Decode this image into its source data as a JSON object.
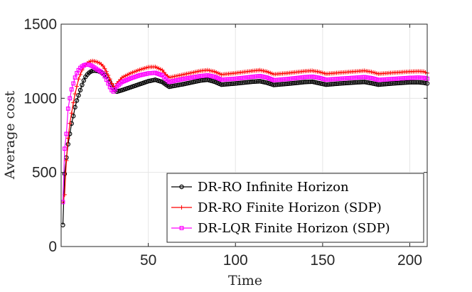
{
  "chart_data": {
    "type": "line",
    "title": "",
    "xlabel": "Time",
    "ylabel": "Average cost",
    "xlim": [
      0,
      210
    ],
    "ylim": [
      0,
      1500
    ],
    "xticks": [
      50,
      100,
      150,
      200
    ],
    "yticks": [
      0,
      500,
      1000,
      1500
    ],
    "grid": true,
    "legend_position": "bottom-right",
    "series": [
      {
        "name": "DR-RO Infinite Horizon",
        "color": "#000000",
        "marker": "circle",
        "keypoints": [
          [
            1,
            145
          ],
          [
            2,
            490
          ],
          [
            3,
            600
          ],
          [
            4,
            690
          ],
          [
            5,
            760
          ],
          [
            6,
            830
          ],
          [
            7,
            880
          ],
          [
            8,
            940
          ],
          [
            9,
            985
          ],
          [
            10,
            1020
          ],
          [
            11,
            1055
          ],
          [
            12,
            1090
          ],
          [
            13,
            1120
          ],
          [
            14,
            1145
          ],
          [
            15,
            1160
          ],
          [
            16,
            1172
          ],
          [
            17,
            1180
          ],
          [
            18,
            1185
          ],
          [
            19,
            1187
          ],
          [
            20,
            1186
          ],
          [
            21,
            1184
          ],
          [
            22,
            1180
          ],
          [
            23,
            1175
          ],
          [
            24,
            1168
          ],
          [
            25,
            1158
          ],
          [
            26,
            1146
          ],
          [
            27,
            1130
          ],
          [
            28,
            1110
          ],
          [
            29,
            1090
          ],
          [
            30,
            1070
          ],
          [
            31,
            1055
          ],
          [
            32,
            1045
          ],
          [
            35,
            1055
          ],
          [
            40,
            1075
          ],
          [
            45,
            1095
          ],
          [
            50,
            1115
          ],
          [
            54,
            1125
          ],
          [
            58,
            1110
          ],
          [
            61,
            1085
          ],
          [
            62,
            1078
          ],
          [
            70,
            1095
          ],
          [
            80,
            1120
          ],
          [
            84,
            1125
          ],
          [
            88,
            1112
          ],
          [
            92,
            1092
          ],
          [
            100,
            1100
          ],
          [
            110,
            1112
          ],
          [
            114,
            1115
          ],
          [
            118,
            1105
          ],
          [
            122,
            1090
          ],
          [
            130,
            1098
          ],
          [
            140,
            1110
          ],
          [
            144,
            1112
          ],
          [
            148,
            1102
          ],
          [
            152,
            1092
          ],
          [
            160,
            1100
          ],
          [
            170,
            1108
          ],
          [
            174,
            1110
          ],
          [
            178,
            1102
          ],
          [
            182,
            1092
          ],
          [
            190,
            1100
          ],
          [
            200,
            1108
          ],
          [
            205,
            1108
          ],
          [
            208,
            1105
          ],
          [
            210,
            1100
          ]
        ]
      },
      {
        "name": "DR-RO Finite Horizon (SDP)",
        "color": "#ff0000",
        "marker": "plus",
        "keypoints": [
          [
            1,
            300
          ],
          [
            2,
            350
          ],
          [
            3,
            580
          ],
          [
            4,
            730
          ],
          [
            5,
            830
          ],
          [
            6,
            900
          ],
          [
            7,
            970
          ],
          [
            8,
            1030
          ],
          [
            9,
            1080
          ],
          [
            10,
            1130
          ],
          [
            11,
            1160
          ],
          [
            12,
            1190
          ],
          [
            13,
            1210
          ],
          [
            14,
            1225
          ],
          [
            15,
            1237
          ],
          [
            16,
            1245
          ],
          [
            17,
            1250
          ],
          [
            18,
            1252
          ],
          [
            19,
            1250
          ],
          [
            20,
            1247
          ],
          [
            21,
            1243
          ],
          [
            22,
            1238
          ],
          [
            23,
            1230
          ],
          [
            24,
            1218
          ],
          [
            25,
            1200
          ],
          [
            26,
            1180
          ],
          [
            27,
            1155
          ],
          [
            28,
            1130
          ],
          [
            29,
            1100
          ],
          [
            30,
            1080
          ],
          [
            31,
            1075
          ],
          [
            32,
            1100
          ],
          [
            35,
            1140
          ],
          [
            40,
            1170
          ],
          [
            45,
            1192
          ],
          [
            50,
            1210
          ],
          [
            54,
            1212
          ],
          [
            58,
            1190
          ],
          [
            60,
            1160
          ],
          [
            62,
            1140
          ],
          [
            70,
            1160
          ],
          [
            80,
            1185
          ],
          [
            84,
            1190
          ],
          [
            88,
            1180
          ],
          [
            92,
            1160
          ],
          [
            100,
            1170
          ],
          [
            110,
            1185
          ],
          [
            114,
            1190
          ],
          [
            118,
            1180
          ],
          [
            122,
            1162
          ],
          [
            130,
            1170
          ],
          [
            140,
            1183
          ],
          [
            144,
            1186
          ],
          [
            148,
            1178
          ],
          [
            152,
            1165
          ],
          [
            160,
            1173
          ],
          [
            170,
            1182
          ],
          [
            174,
            1186
          ],
          [
            178,
            1178
          ],
          [
            182,
            1165
          ],
          [
            190,
            1172
          ],
          [
            200,
            1180
          ],
          [
            205,
            1182
          ],
          [
            208,
            1180
          ],
          [
            210,
            1170
          ]
        ]
      },
      {
        "name": "DR-LQR Finite Horizon (SDP)",
        "color": "#ff00ff",
        "marker": "square",
        "keypoints": [
          [
            1,
            300
          ],
          [
            2,
            660
          ],
          [
            3,
            760
          ],
          [
            4,
            930
          ],
          [
            5,
            1000
          ],
          [
            6,
            1060
          ],
          [
            7,
            1100
          ],
          [
            8,
            1140
          ],
          [
            9,
            1170
          ],
          [
            10,
            1190
          ],
          [
            11,
            1205
          ],
          [
            12,
            1215
          ],
          [
            13,
            1222
          ],
          [
            14,
            1226
          ],
          [
            15,
            1228
          ],
          [
            16,
            1226
          ],
          [
            17,
            1222
          ],
          [
            18,
            1216
          ],
          [
            19,
            1208
          ],
          [
            20,
            1200
          ],
          [
            21,
            1192
          ],
          [
            22,
            1185
          ],
          [
            23,
            1178
          ],
          [
            24,
            1165
          ],
          [
            25,
            1148
          ],
          [
            26,
            1125
          ],
          [
            27,
            1100
          ],
          [
            28,
            1075
          ],
          [
            29,
            1055
          ],
          [
            30,
            1045
          ],
          [
            31,
            1060
          ],
          [
            32,
            1080
          ],
          [
            35,
            1110
          ],
          [
            40,
            1135
          ],
          [
            45,
            1155
          ],
          [
            50,
            1168
          ],
          [
            54,
            1172
          ],
          [
            58,
            1155
          ],
          [
            60,
            1130
          ],
          [
            62,
            1110
          ],
          [
            70,
            1130
          ],
          [
            80,
            1150
          ],
          [
            84,
            1155
          ],
          [
            88,
            1145
          ],
          [
            92,
            1125
          ],
          [
            100,
            1132
          ],
          [
            110,
            1145
          ],
          [
            114,
            1150
          ],
          [
            118,
            1140
          ],
          [
            122,
            1122
          ],
          [
            130,
            1130
          ],
          [
            140,
            1143
          ],
          [
            144,
            1146
          ],
          [
            148,
            1138
          ],
          [
            152,
            1125
          ],
          [
            160,
            1132
          ],
          [
            170,
            1140
          ],
          [
            174,
            1143
          ],
          [
            178,
            1136
          ],
          [
            182,
            1124
          ],
          [
            190,
            1130
          ],
          [
            200,
            1138
          ],
          [
            205,
            1140
          ],
          [
            208,
            1138
          ],
          [
            210,
            1132
          ]
        ]
      }
    ]
  }
}
